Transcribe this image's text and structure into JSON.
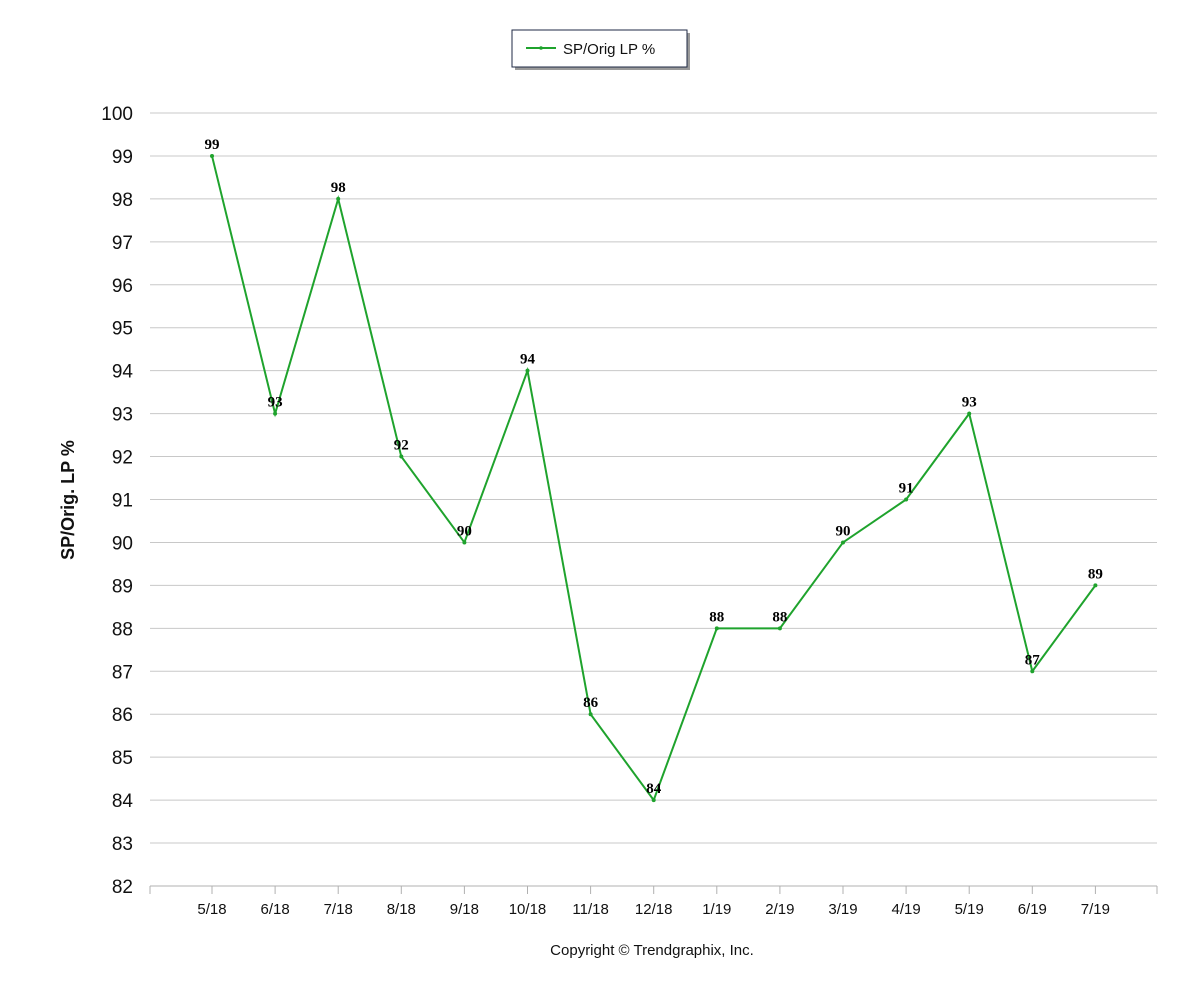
{
  "colors": {
    "series": "#1fa32d",
    "grid": "#c8c8c8",
    "text": "#111111"
  },
  "footer": {
    "copyright": "Copyright © Trendgraphix, Inc."
  },
  "chart_data": {
    "type": "line",
    "title": "",
    "xlabel": "",
    "ylabel": "SP/Orig. LP %",
    "ylim": [
      82,
      100
    ],
    "y_ticks": [
      "82",
      "83",
      "84",
      "85",
      "86",
      "87",
      "88",
      "89",
      "90",
      "91",
      "92",
      "93",
      "94",
      "95",
      "96",
      "97",
      "98",
      "99",
      "100"
    ],
    "grid": true,
    "legend_position": "top-center",
    "categories": [
      "5/18",
      "6/18",
      "7/18",
      "8/18",
      "9/18",
      "10/18",
      "11/18",
      "12/18",
      "1/19",
      "2/19",
      "3/19",
      "4/19",
      "5/19",
      "6/19",
      "7/19"
    ],
    "series": [
      {
        "name": "SP/Orig LP %",
        "values": [
          99,
          93,
          98,
          92,
          90,
          94,
          86,
          84,
          88,
          88,
          90,
          91,
          93,
          87,
          89
        ],
        "data_labels": [
          "99",
          "93",
          "98",
          "92",
          "90",
          "94",
          "86",
          "84",
          "88",
          "88",
          "90",
          "91",
          "93",
          "87",
          "89"
        ]
      }
    ]
  }
}
